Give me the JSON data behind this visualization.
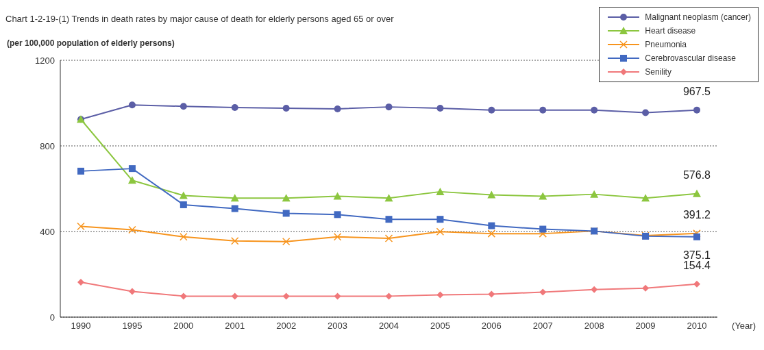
{
  "chart_data": {
    "type": "line",
    "title": "Chart 1-2-19-(1) Trends in death rates by major cause of death for elderly persons aged 65 or over",
    "ylabel": "(per 100,000 population of elderly persons)",
    "xlabel": "(Year)",
    "categories": [
      "1990",
      "1995",
      "2000",
      "2001",
      "2002",
      "2003",
      "2004",
      "2005",
      "2006",
      "2007",
      "2008",
      "2009",
      "2010"
    ],
    "ylim": [
      0,
      1200
    ],
    "yticks": [
      0,
      400,
      800,
      1200
    ],
    "grid": "y",
    "legend": "top right",
    "series": [
      {
        "name": "Malignant neoplasm (cancer)",
        "color": "#5b5ea6",
        "marker": "circle",
        "values": [
          924,
          991,
          985,
          979,
          976,
          973,
          982,
          976,
          967,
          967,
          967,
          955,
          967.5
        ],
        "value_labels": [
          null,
          null,
          null,
          null,
          null,
          null,
          null,
          null,
          null,
          null,
          null,
          null,
          "967.5"
        ]
      },
      {
        "name": "Heart disease",
        "color": "#8cc63f",
        "marker": "triangle",
        "values": [
          924,
          639,
          568,
          556,
          556,
          565,
          556,
          586,
          571,
          565,
          574,
          556,
          576.8
        ],
        "value_labels": [
          null,
          null,
          null,
          null,
          null,
          null,
          null,
          null,
          null,
          null,
          null,
          null,
          "576.8"
        ]
      },
      {
        "name": "Pneumonia",
        "color": "#f7941d",
        "marker": "cross",
        "values": [
          424,
          408,
          375,
          356,
          353,
          375,
          368,
          399,
          390,
          390,
          402,
          381,
          391.2
        ],
        "value_labels": [
          null,
          null,
          null,
          null,
          null,
          null,
          null,
          null,
          null,
          null,
          null,
          null,
          "391.2"
        ]
      },
      {
        "name": "Cerebrovascular disease",
        "color": "#4169c1",
        "marker": "square",
        "values": [
          682,
          694,
          525,
          507,
          485,
          479,
          457,
          457,
          427,
          411,
          402,
          378,
          375.1
        ],
        "value_labels": [
          null,
          null,
          null,
          null,
          null,
          null,
          null,
          null,
          null,
          null,
          null,
          null,
          "375.1"
        ]
      },
      {
        "name": "Senility",
        "color": "#f0787a",
        "marker": "diamond",
        "values": [
          163,
          120,
          98,
          98,
          98,
          98,
          98,
          104,
          107,
          117,
          129,
          135,
          154.4
        ],
        "value_labels": [
          null,
          null,
          null,
          null,
          null,
          null,
          null,
          null,
          null,
          null,
          null,
          null,
          "154.4"
        ]
      }
    ]
  }
}
